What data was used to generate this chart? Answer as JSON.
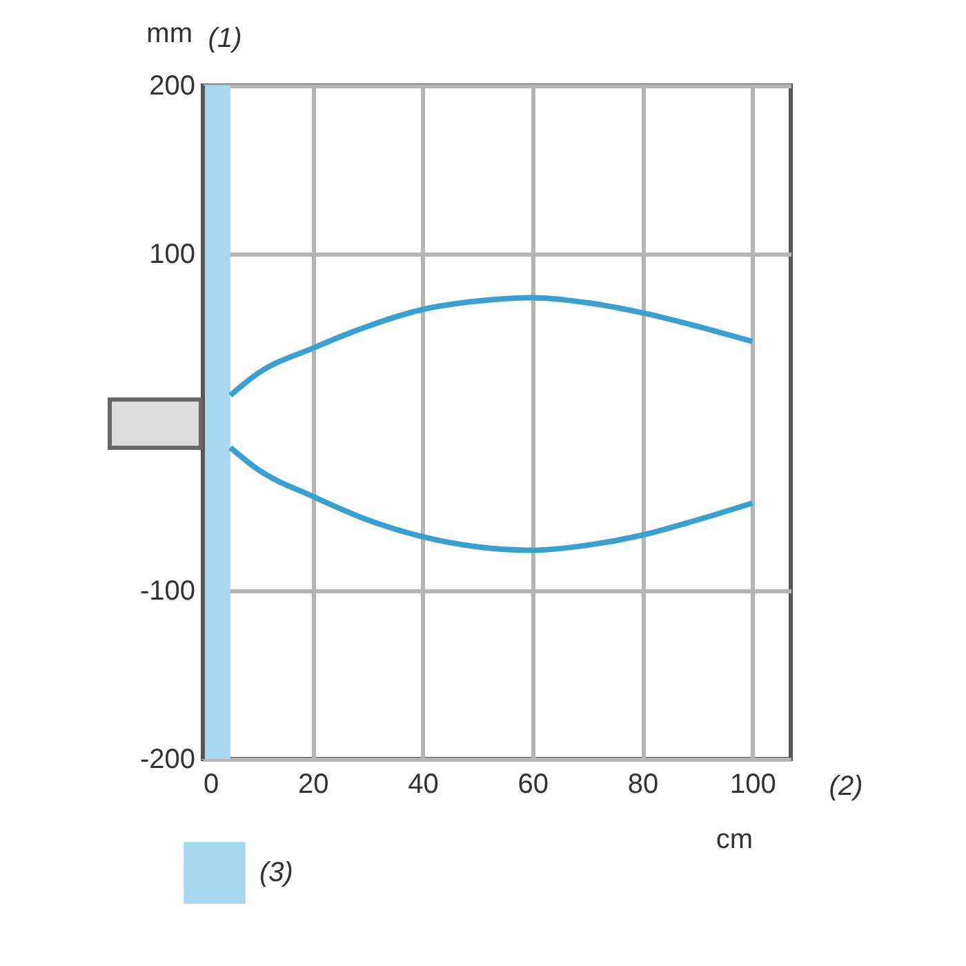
{
  "chart_data": {
    "type": "line",
    "xlabel": "cm",
    "ylabel": "mm",
    "annotations": [
      "(1)",
      "(2)"
    ],
    "xlim": [
      0,
      107
    ],
    "xticks": [
      0,
      20,
      40,
      60,
      80,
      100
    ],
    "ylim": [
      -200,
      200
    ],
    "yticks": [
      -200,
      -100,
      100,
      200
    ],
    "grid": true,
    "legend": "bottom",
    "bands": [
      {
        "axis": "x",
        "from": 0,
        "to": 5,
        "label": "(3)",
        "color": "#a8d8f0"
      }
    ],
    "series": [
      {
        "color": "#3aa0d0",
        "x": [
          5,
          10,
          20,
          30,
          40,
          50,
          60,
          70,
          80,
          90,
          100
        ],
        "values": [
          16,
          29,
          44,
          57,
          67,
          72,
          74,
          71,
          65,
          57,
          48
        ]
      },
      {
        "color": "#3aa0d0",
        "x": [
          5,
          10,
          20,
          30,
          40,
          50,
          60,
          70,
          80,
          90,
          100
        ],
        "values": [
          -15,
          -28,
          -44,
          -58,
          -68,
          -74,
          -76,
          -73,
          -67,
          -58,
          -48
        ]
      }
    ]
  }
}
